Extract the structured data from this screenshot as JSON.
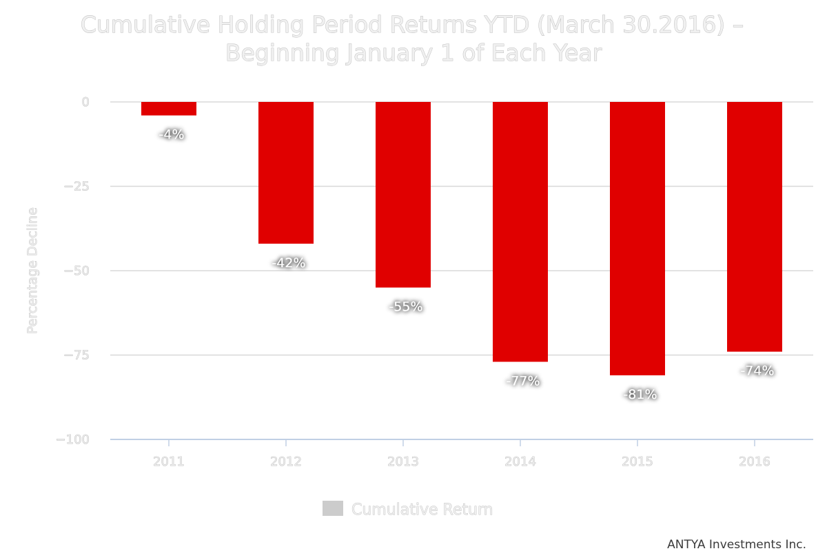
{
  "chart_data": {
    "type": "bar",
    "title": "Cumulative Holding Period Returns YTD (March 30.2016) –",
    "subtitle": "Beginning January 1 of Each Year",
    "categories": [
      "2011",
      "2012",
      "2013",
      "2014",
      "2015",
      "2016"
    ],
    "series": [
      {
        "name": "Cumulative Return",
        "values": [
          -4,
          -42,
          -55,
          -77,
          -81,
          -74
        ],
        "labels": [
          "-4%",
          "-42%",
          "-55%",
          "-77%",
          "-81%",
          "-74%"
        ]
      }
    ],
    "ylabel": "Percentage Decline",
    "xlabel": "",
    "ylim": [
      -100,
      0
    ],
    "yticks": [
      0,
      -25,
      -50,
      -75,
      -100
    ],
    "ytick_labels": [
      "0",
      "−25",
      "−50",
      "−75",
      "−100"
    ],
    "grid": true,
    "legend_position": "bottom-center",
    "bar_color": "#e00000",
    "legend_swatch_color": "#cccccc",
    "credit": "ANTYA Investments Inc."
  }
}
